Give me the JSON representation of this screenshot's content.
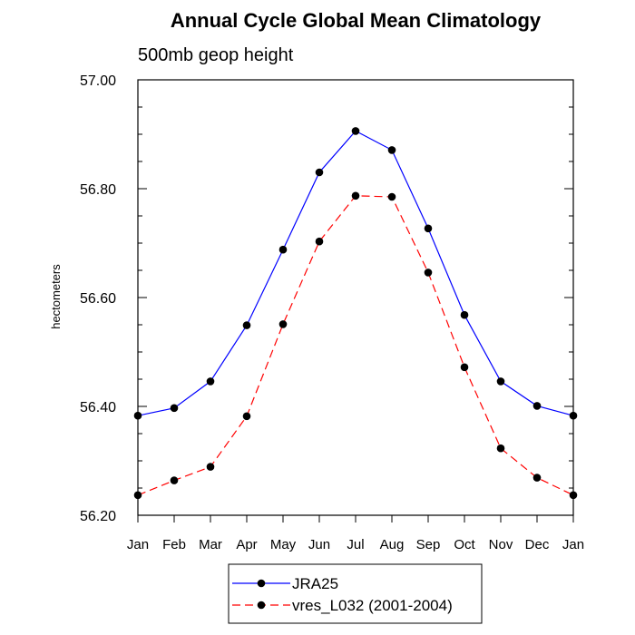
{
  "chart_data": {
    "type": "line",
    "title": "Annual Cycle Global Mean Climatology",
    "subtitle": "500mb geop height",
    "xlabel": "",
    "ylabel": "hectometers",
    "categories": [
      "Jan",
      "Feb",
      "Mar",
      "Apr",
      "May",
      "Jun",
      "Jul",
      "Aug",
      "Sep",
      "Oct",
      "Nov",
      "Dec",
      "Jan"
    ],
    "ylim": [
      56.2,
      57.0
    ],
    "yticks": [
      56.2,
      56.4,
      56.6,
      56.8,
      57.0
    ],
    "ytick_labels": [
      "56.20",
      "56.40",
      "56.60",
      "56.80",
      "57.00"
    ],
    "y_minor_step": 0.05,
    "grid": false,
    "legend_position": "bottom-center",
    "series": [
      {
        "name": "JRA25",
        "color": "#0000ff",
        "dash": "solid",
        "marker": "circle",
        "values": [
          56.383,
          56.397,
          56.446,
          56.549,
          56.688,
          56.83,
          56.906,
          56.871,
          56.727,
          56.568,
          56.446,
          56.401,
          56.383
        ]
      },
      {
        "name": "vres_L032 (2001-2004)",
        "color": "#ff0000",
        "dash": "dashed",
        "marker": "circle",
        "values": [
          56.237,
          56.264,
          56.289,
          56.382,
          56.551,
          56.703,
          56.787,
          56.785,
          56.646,
          56.472,
          56.323,
          56.269,
          56.237
        ]
      }
    ]
  }
}
